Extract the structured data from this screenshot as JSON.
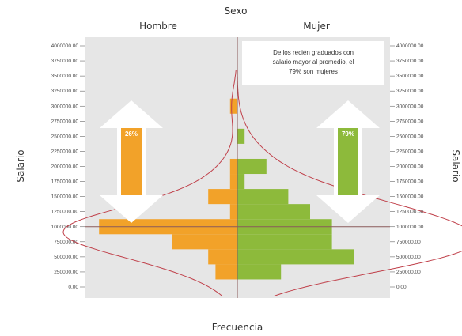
{
  "chart_data": {
    "type": "bar",
    "title": "Sexo",
    "xlabel": "Frecuencia",
    "ylabel": "Salario",
    "panels": [
      "Hombre",
      "Mujer"
    ],
    "y_ticks": [
      "0.00",
      "250000.00",
      "500000.00",
      "750000.00",
      "1000000.00",
      "1250000.00",
      "1500000.00",
      "1750000.00",
      "2000000.00",
      "2250000.00",
      "2500000.00",
      "2750000.00",
      "3000000.00",
      "3250000.00",
      "3500000.00",
      "3750000.00",
      "4000000.00"
    ],
    "ylim": [
      0,
      4000000
    ],
    "bin_width": 250000,
    "reference_line_y": 1000000,
    "series": [
      {
        "name": "Hombre",
        "color": "#f2a229",
        "bins": [
          {
            "y": 250000,
            "value": 3
          },
          {
            "y": 500000,
            "value": 4
          },
          {
            "y": 750000,
            "value": 9
          },
          {
            "y": 1000000,
            "value": 19
          },
          {
            "y": 1250000,
            "value": 1
          },
          {
            "y": 1500000,
            "value": 4
          },
          {
            "y": 1750000,
            "value": 1
          },
          {
            "y": 2000000,
            "value": 1
          },
          {
            "y": 3000000,
            "value": 1
          }
        ]
      },
      {
        "name": "Mujer",
        "color": "#8dba3b",
        "bins": [
          {
            "y": 250000,
            "value": 6
          },
          {
            "y": 500000,
            "value": 16
          },
          {
            "y": 750000,
            "value": 13
          },
          {
            "y": 1000000,
            "value": 13
          },
          {
            "y": 1250000,
            "value": 10
          },
          {
            "y": 1500000,
            "value": 7
          },
          {
            "y": 1750000,
            "value": 1
          },
          {
            "y": 2000000,
            "value": 4
          },
          {
            "y": 2500000,
            "value": 1
          }
        ]
      }
    ],
    "annotation": {
      "lines": [
        "De los recién graduados con",
        "salario mayor al promedio, el",
        "79% son mujeres"
      ]
    },
    "arrows": [
      {
        "label": "26%",
        "color": "#f2a229"
      },
      {
        "label": "79%",
        "color": "#8dba3b"
      }
    ],
    "colors": {
      "background": "#e6e6e6",
      "curve": "#c0404a",
      "axis_line": "#8a5a5a"
    }
  }
}
